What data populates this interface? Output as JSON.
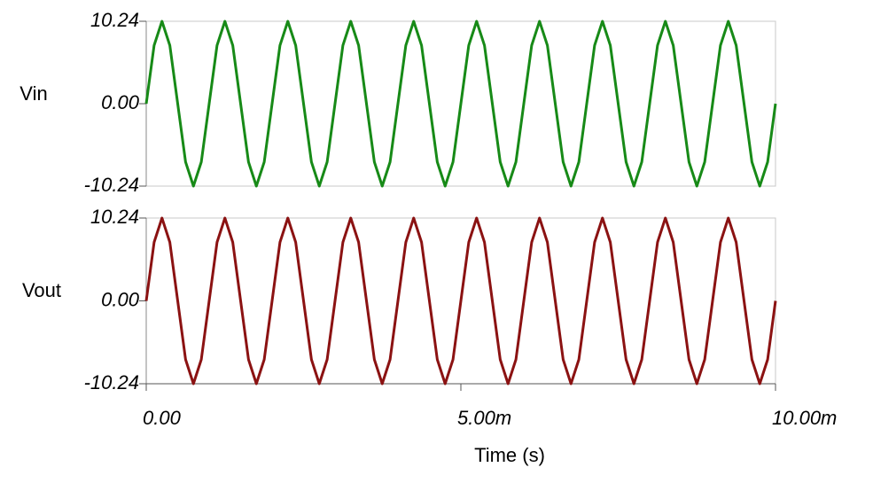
{
  "chart_data": [
    {
      "type": "line",
      "x": [
        0,
        0.000125,
        0.00025,
        0.000375,
        0.0005,
        0.000625,
        0.00075,
        0.000875,
        0.001,
        0.001125,
        0.00125,
        0.001375,
        0.0015,
        0.001625,
        0.00175,
        0.001875,
        0.002,
        0.002125,
        0.00225,
        0.002375,
        0.0025,
        0.002625,
        0.00275,
        0.002875,
        0.003,
        0.003125,
        0.00325,
        0.003375,
        0.0035,
        0.003625,
        0.00375,
        0.003875,
        0.004,
        0.004125,
        0.00425,
        0.004375,
        0.0045,
        0.004625,
        0.00475,
        0.004875,
        0.005,
        0.005125,
        0.00525,
        0.005375,
        0.0055,
        0.005625,
        0.00575,
        0.005875,
        0.006,
        0.006125,
        0.00625,
        0.006375,
        0.0065,
        0.006625,
        0.00675,
        0.006875,
        0.007,
        0.007125,
        0.00725,
        0.007375,
        0.0075,
        0.007625,
        0.00775,
        0.007875,
        0.008,
        0.008125,
        0.00825,
        0.008375,
        0.0085,
        0.008625,
        0.00875,
        0.008875,
        0.009,
        0.009125,
        0.00925,
        0.009375,
        0.0095,
        0.009625,
        0.00975,
        0.009875,
        0.01
      ],
      "series": [
        {
          "name": "Vin",
          "color": "#178a17",
          "values": [
            0,
            7.24,
            10.24,
            7.24,
            0,
            -7.24,
            -10.24,
            -7.24,
            0,
            7.24,
            10.24,
            7.24,
            0,
            -7.24,
            -10.24,
            -7.24,
            0,
            7.24,
            10.24,
            7.24,
            0,
            -7.24,
            -10.24,
            -7.24,
            0,
            7.24,
            10.24,
            7.24,
            0,
            -7.24,
            -10.24,
            -7.24,
            0,
            7.24,
            10.24,
            7.24,
            0,
            -7.24,
            -10.24,
            -7.24,
            0,
            7.24,
            10.24,
            7.24,
            0,
            -7.24,
            -10.24,
            -7.24,
            0,
            7.24,
            10.24,
            7.24,
            0,
            -7.24,
            -10.24,
            -7.24,
            0,
            7.24,
            10.24,
            7.24,
            0,
            -7.24,
            -10.24,
            -7.24,
            0,
            7.24,
            10.24,
            7.24,
            0,
            -7.24,
            -10.24,
            -7.24,
            0,
            7.24,
            10.24,
            7.24,
            0,
            -7.24,
            -10.24,
            -7.24,
            0
          ]
        }
      ],
      "xlim": [
        0,
        0.01
      ],
      "ylim": [
        -10.24,
        10.24
      ],
      "yticks": [
        -10.24,
        {
          "value": 0,
          "label": "0.00"
        },
        10.24
      ]
    },
    {
      "type": "line",
      "x": [
        0,
        0.000125,
        0.00025,
        0.000375,
        0.0005,
        0.000625,
        0.00075,
        0.000875,
        0.001,
        0.001125,
        0.00125,
        0.001375,
        0.0015,
        0.001625,
        0.00175,
        0.001875,
        0.002,
        0.002125,
        0.00225,
        0.002375,
        0.0025,
        0.002625,
        0.00275,
        0.002875,
        0.003,
        0.003125,
        0.00325,
        0.003375,
        0.0035,
        0.003625,
        0.00375,
        0.003875,
        0.004,
        0.004125,
        0.00425,
        0.004375,
        0.0045,
        0.004625,
        0.00475,
        0.004875,
        0.005,
        0.005125,
        0.00525,
        0.005375,
        0.0055,
        0.005625,
        0.00575,
        0.005875,
        0.006,
        0.006125,
        0.00625,
        0.006375,
        0.0065,
        0.006625,
        0.00675,
        0.006875,
        0.007,
        0.007125,
        0.00725,
        0.007375,
        0.0075,
        0.007625,
        0.00775,
        0.007875,
        0.008,
        0.008125,
        0.00825,
        0.008375,
        0.0085,
        0.008625,
        0.00875,
        0.008875,
        0.009,
        0.009125,
        0.00925,
        0.009375,
        0.0095,
        0.009625,
        0.00975,
        0.009875,
        0.01
      ],
      "series": [
        {
          "name": "Vout",
          "color": "#8b1212",
          "values": [
            0,
            7.24,
            10.24,
            7.24,
            0,
            -7.24,
            -10.24,
            -7.24,
            0,
            7.24,
            10.24,
            7.24,
            0,
            -7.24,
            -10.24,
            -7.24,
            0,
            7.24,
            10.24,
            7.24,
            0,
            -7.24,
            -10.24,
            -7.24,
            0,
            7.24,
            10.24,
            7.24,
            0,
            -7.24,
            -10.24,
            -7.24,
            0,
            7.24,
            10.24,
            7.24,
            0,
            -7.24,
            -10.24,
            -7.24,
            0,
            7.24,
            10.24,
            7.24,
            0,
            -7.24,
            -10.24,
            -7.24,
            0,
            7.24,
            10.24,
            7.24,
            0,
            -7.24,
            -10.24,
            -7.24,
            0,
            7.24,
            10.24,
            7.24,
            0,
            -7.24,
            -10.24,
            -7.24,
            0,
            7.24,
            10.24,
            7.24,
            0,
            -7.24,
            -10.24,
            -7.24,
            0,
            7.24,
            10.24,
            7.24,
            0,
            -7.24,
            -10.24,
            -7.24,
            0
          ]
        }
      ],
      "xlim": [
        0,
        0.01
      ],
      "xticks": [
        {
          "value": 0,
          "label": "0.00"
        },
        {
          "value": 0.005,
          "label": "5.00m"
        },
        {
          "value": 0.01,
          "label": "10.00m"
        }
      ],
      "xlabel": "Time (s)",
      "ylim": [
        -10.24,
        10.24
      ],
      "yticks": [
        -10.24,
        {
          "value": 0,
          "label": "0.00"
        },
        10.24
      ]
    }
  ]
}
